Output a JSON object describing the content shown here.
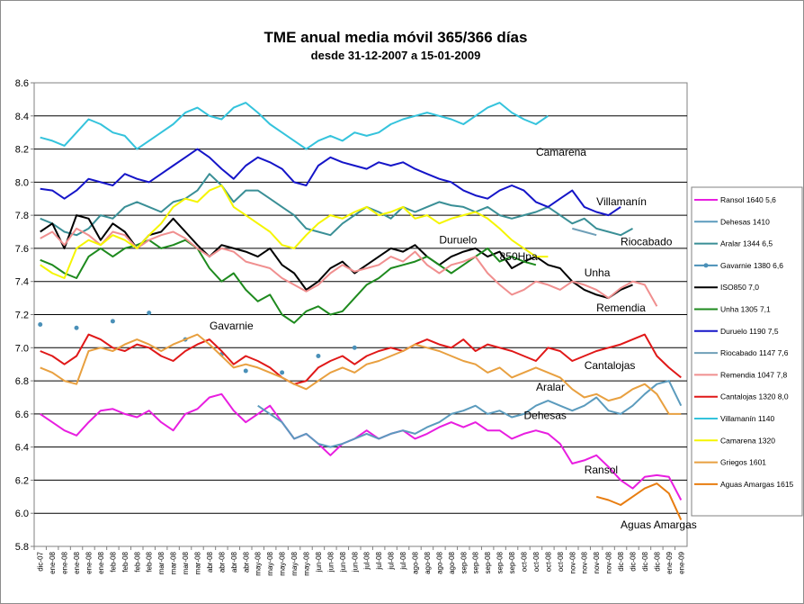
{
  "chart_data": {
    "type": "line",
    "title": "TME anual media móvil 365/366 días",
    "subtitle": "desde 31-12-2007 a 15-01-2009",
    "ylim": [
      5.8,
      8.6
    ],
    "yticks": [
      "8.6",
      "8.4",
      "8.2",
      "8.0",
      "7.8",
      "7.6",
      "7.4",
      "7.2",
      "7.0",
      "6.8",
      "6.6",
      "6.4",
      "6.2",
      "6.0",
      "5.8"
    ],
    "grid": "horizontal",
    "legend_position": "right",
    "x_tick_labels": [
      "dic-07",
      "ene-08",
      "ene-08",
      "ene-08",
      "ene-08",
      "ene-08",
      "feb-08",
      "feb-08",
      "feb-08",
      "feb-08",
      "mar-08",
      "mar-08",
      "mar-08",
      "mar-08",
      "abr-08",
      "abr-08",
      "abr-08",
      "abr-08",
      "may-08",
      "may-08",
      "may-08",
      "may-08",
      "may-08",
      "jun-08",
      "jun-08",
      "jun-08",
      "jun-08",
      "jul-08",
      "jul-08",
      "jul-08",
      "jul-08",
      "ago-08",
      "ago-08",
      "ago-08",
      "ago-08",
      "sep-08",
      "sep-08",
      "sep-08",
      "sep-08",
      "sep-08",
      "oct-08",
      "oct-08",
      "oct-08",
      "oct-08",
      "nov-08",
      "nov-08",
      "nov-08",
      "nov-08",
      "dic-08",
      "dic-08",
      "dic-08",
      "dic-08",
      "ene-09",
      "ene-09"
    ],
    "series": [
      {
        "name": "Ransol 1640 5,6",
        "color": "#e81ee0",
        "values": [
          6.6,
          6.55,
          6.5,
          6.47,
          6.55,
          6.62,
          6.63,
          6.6,
          6.58,
          6.62,
          6.55,
          6.5,
          6.6,
          6.63,
          6.7,
          6.72,
          6.62,
          6.55,
          6.6,
          6.65,
          6.55,
          6.45,
          6.48,
          6.42,
          6.35,
          6.42,
          6.45,
          6.5,
          6.45,
          6.48,
          6.5,
          6.45,
          6.48,
          6.52,
          6.55,
          6.52,
          6.55,
          6.5,
          6.5,
          6.45,
          6.48,
          6.5,
          6.48,
          6.42,
          6.3,
          6.32,
          6.35,
          6.28,
          6.2,
          6.15,
          6.22,
          6.23,
          6.22,
          6.08
        ]
      },
      {
        "name": "Dehesas 1410",
        "color": "#5b9bbd",
        "values": [
          null,
          null,
          null,
          null,
          null,
          null,
          null,
          null,
          null,
          null,
          null,
          null,
          null,
          null,
          null,
          null,
          null,
          null,
          6.65,
          6.6,
          6.55,
          6.45,
          6.48,
          6.42,
          6.4,
          6.42,
          6.45,
          6.48,
          6.45,
          6.48,
          6.5,
          6.48,
          6.52,
          6.55,
          6.6,
          6.62,
          6.65,
          6.6,
          6.62,
          6.58,
          6.6,
          6.65,
          6.68,
          6.65,
          6.62,
          6.65,
          6.7,
          6.62,
          6.6,
          6.65,
          6.72,
          6.78,
          6.8,
          6.65
        ]
      },
      {
        "name": "Aralar 1344 6,5",
        "color": "#3a8f96",
        "values": [
          7.78,
          7.75,
          7.7,
          7.68,
          7.72,
          7.8,
          7.78,
          7.85,
          7.88,
          7.85,
          7.82,
          7.88,
          7.9,
          7.95,
          8.05,
          7.98,
          7.88,
          7.95,
          7.95,
          7.9,
          7.85,
          7.8,
          7.72,
          7.7,
          7.68,
          7.75,
          7.8,
          7.85,
          7.82,
          7.78,
          7.85,
          7.82,
          7.85,
          7.88,
          7.86,
          7.85,
          7.82,
          7.85,
          7.8,
          7.78,
          7.8,
          7.82,
          7.85,
          7.8,
          7.75,
          7.78,
          7.72,
          7.7,
          7.68,
          7.72,
          null,
          null,
          null,
          null
        ]
      },
      {
        "name": "Gavarnie 1380 6,6",
        "color": "#4a90b8",
        "values": [
          7.14,
          null,
          null,
          7.12,
          null,
          null,
          7.16,
          null,
          null,
          7.21,
          null,
          null,
          7.05,
          null,
          null,
          6.96,
          null,
          6.86,
          null,
          null,
          6.85,
          null,
          null,
          6.95,
          null,
          null,
          7.0,
          null,
          null,
          null,
          null,
          null,
          null,
          null,
          null,
          null,
          null,
          null,
          null,
          null,
          null,
          null,
          null,
          null,
          null,
          null,
          null,
          null,
          null,
          null,
          null,
          null,
          null,
          null
        ]
      },
      {
        "name": "ISO850  7,0",
        "color": "#000000",
        "values": [
          7.7,
          7.75,
          7.6,
          7.8,
          7.78,
          7.65,
          7.75,
          7.7,
          7.6,
          7.68,
          7.7,
          7.78,
          7.7,
          7.62,
          7.55,
          7.62,
          7.6,
          7.58,
          7.55,
          7.6,
          7.5,
          7.45,
          7.35,
          7.4,
          7.48,
          7.52,
          7.45,
          7.5,
          7.55,
          7.6,
          7.58,
          7.62,
          7.55,
          7.5,
          7.55,
          7.58,
          7.6,
          7.55,
          7.58,
          7.48,
          7.52,
          7.55,
          7.5,
          7.48,
          7.4,
          7.35,
          7.32,
          7.3,
          7.35,
          7.38,
          null,
          null,
          null,
          null
        ]
      },
      {
        "name": "Unha 1305 7,1",
        "color": "#1e8a1e",
        "values": [
          7.53,
          7.5,
          7.45,
          7.42,
          7.55,
          7.6,
          7.55,
          7.6,
          7.62,
          7.65,
          7.6,
          7.62,
          7.65,
          7.6,
          7.48,
          7.4,
          7.45,
          7.35,
          7.28,
          7.32,
          7.2,
          7.15,
          7.22,
          7.25,
          7.2,
          7.22,
          7.3,
          7.38,
          7.42,
          7.48,
          7.5,
          7.52,
          7.55,
          7.5,
          7.45,
          7.5,
          7.55,
          7.6,
          7.52,
          7.55,
          7.52,
          7.5,
          null,
          null,
          null,
          null,
          null,
          null,
          null,
          null,
          null,
          null,
          null,
          null
        ]
      },
      {
        "name": "Duruelo 1190 7,5",
        "color": "#1515c8",
        "values": [
          7.96,
          7.95,
          7.9,
          7.95,
          8.02,
          8.0,
          7.98,
          8.05,
          8.02,
          8.0,
          8.05,
          8.1,
          8.15,
          8.2,
          8.15,
          8.08,
          8.02,
          8.1,
          8.15,
          8.12,
          8.08,
          8.0,
          7.98,
          8.1,
          8.15,
          8.12,
          8.1,
          8.08,
          8.12,
          8.1,
          8.12,
          8.08,
          8.05,
          8.02,
          8.0,
          7.95,
          7.92,
          7.9,
          7.95,
          7.98,
          7.95,
          7.88,
          7.85,
          7.9,
          7.95,
          7.85,
          7.82,
          7.8,
          7.85,
          null,
          null,
          null,
          null,
          null
        ]
      },
      {
        "name": "Riocabado 1147 7,6",
        "color": "#6f9fb8",
        "values": [
          null,
          null,
          null,
          null,
          null,
          null,
          null,
          null,
          null,
          null,
          null,
          null,
          null,
          null,
          null,
          null,
          null,
          null,
          null,
          null,
          null,
          null,
          null,
          null,
          null,
          null,
          null,
          null,
          null,
          null,
          null,
          null,
          null,
          null,
          null,
          null,
          null,
          null,
          null,
          null,
          null,
          null,
          null,
          null,
          7.72,
          7.7,
          7.68,
          null,
          null,
          null,
          null,
          null,
          null,
          null
        ]
      },
      {
        "name": "Remendia 1047 7,8",
        "color": "#f08f8f",
        "values": [
          7.66,
          7.7,
          7.62,
          7.72,
          7.68,
          7.62,
          7.7,
          7.68,
          7.6,
          7.65,
          7.68,
          7.7,
          7.66,
          7.6,
          7.55,
          7.6,
          7.58,
          7.52,
          7.5,
          7.48,
          7.42,
          7.38,
          7.34,
          7.38,
          7.45,
          7.5,
          7.46,
          7.48,
          7.5,
          7.55,
          7.52,
          7.58,
          7.5,
          7.45,
          7.5,
          7.52,
          7.55,
          7.45,
          7.38,
          7.32,
          7.35,
          7.4,
          7.38,
          7.35,
          7.4,
          7.38,
          7.35,
          7.3,
          7.36,
          7.4,
          7.38,
          7.25,
          null,
          null
        ]
      },
      {
        "name": "Cantalojas 1320 8,0",
        "color": "#e01818",
        "values": [
          6.98,
          6.95,
          6.9,
          6.95,
          7.08,
          7.05,
          7.0,
          6.98,
          7.02,
          7.0,
          6.95,
          6.92,
          6.98,
          7.02,
          7.05,
          6.98,
          6.9,
          6.95,
          6.92,
          6.88,
          6.82,
          6.78,
          6.8,
          6.88,
          6.92,
          6.95,
          6.9,
          6.95,
          6.98,
          7.0,
          6.98,
          7.02,
          7.05,
          7.02,
          7.0,
          7.05,
          6.98,
          7.02,
          7.0,
          6.98,
          6.95,
          6.92,
          7.0,
          6.98,
          6.92,
          6.95,
          6.98,
          7.0,
          7.02,
          7.05,
          7.08,
          6.95,
          6.88,
          6.82
        ]
      },
      {
        "name": "Villamanín 1140",
        "color": "#34c3dc",
        "values": [
          8.27,
          8.25,
          8.22,
          8.3,
          8.38,
          8.35,
          8.3,
          8.28,
          8.2,
          8.25,
          8.3,
          8.35,
          8.42,
          8.45,
          8.4,
          8.38,
          8.45,
          8.48,
          8.42,
          8.35,
          8.3,
          8.25,
          8.2,
          8.25,
          8.28,
          8.25,
          8.3,
          8.28,
          8.3,
          8.35,
          8.38,
          8.4,
          8.42,
          8.4,
          8.38,
          8.35,
          8.4,
          8.45,
          8.48,
          8.42,
          8.38,
          8.35,
          8.4,
          null,
          null,
          null,
          null,
          null,
          null,
          null,
          null,
          null,
          null,
          null
        ]
      },
      {
        "name": "Camarena 1320",
        "color": "#f5f500",
        "values": [
          7.5,
          7.45,
          7.42,
          7.6,
          7.65,
          7.62,
          7.68,
          7.65,
          7.6,
          7.68,
          7.75,
          7.85,
          7.9,
          7.88,
          7.95,
          7.98,
          7.85,
          7.8,
          7.75,
          7.7,
          7.62,
          7.6,
          7.68,
          7.75,
          7.8,
          7.78,
          7.82,
          7.85,
          7.8,
          7.82,
          7.85,
          7.78,
          7.8,
          7.75,
          7.78,
          7.8,
          7.82,
          7.78,
          7.72,
          7.65,
          7.6,
          7.55,
          7.55,
          null,
          null,
          null,
          null,
          null,
          null,
          null,
          null,
          null,
          null,
          null
        ]
      },
      {
        "name": "Griegos 1601",
        "color": "#e8a040",
        "values": [
          6.88,
          6.85,
          6.8,
          6.78,
          6.98,
          7.0,
          6.98,
          7.02,
          7.05,
          7.02,
          6.98,
          7.02,
          7.05,
          7.08,
          7.02,
          6.95,
          6.88,
          6.9,
          6.88,
          6.85,
          6.82,
          6.78,
          6.75,
          6.8,
          6.85,
          6.88,
          6.85,
          6.9,
          6.92,
          6.95,
          6.98,
          7.02,
          7.0,
          6.98,
          6.95,
          6.92,
          6.9,
          6.85,
          6.88,
          6.82,
          6.85,
          6.88,
          6.85,
          6.82,
          6.75,
          6.7,
          6.72,
          6.68,
          6.7,
          6.75,
          6.78,
          6.72,
          6.6,
          6.6
        ]
      },
      {
        "name": "Aguas Amargas 1615",
        "color": "#e87d10",
        "values": [
          null,
          null,
          null,
          null,
          null,
          null,
          null,
          null,
          null,
          null,
          null,
          null,
          null,
          null,
          null,
          null,
          null,
          null,
          null,
          null,
          null,
          null,
          null,
          null,
          null,
          null,
          null,
          null,
          null,
          null,
          null,
          null,
          null,
          null,
          null,
          null,
          null,
          null,
          null,
          null,
          null,
          null,
          null,
          null,
          null,
          null,
          6.1,
          6.08,
          6.05,
          6.1,
          6.15,
          6.18,
          6.12,
          5.96
        ]
      }
    ],
    "annotations": [
      {
        "text": "Camarena",
        "x_index": 41,
        "y": 8.16
      },
      {
        "text": "Villamanín",
        "x_index": 46,
        "y": 7.86
      },
      {
        "text": "Riocabado",
        "x_index": 48,
        "y": 7.62
      },
      {
        "text": "Duruelo",
        "x_index": 33,
        "y": 7.63
      },
      {
        "text": "850Hpa",
        "x_index": 38,
        "y": 7.53
      },
      {
        "text": "Unha",
        "x_index": 45,
        "y": 7.43
      },
      {
        "text": "Remendia",
        "x_index": 46,
        "y": 7.22
      },
      {
        "text": "Gavarnie",
        "x_index": 14,
        "y": 7.11
      },
      {
        "text": "Cantalojas",
        "x_index": 45,
        "y": 6.87
      },
      {
        "text": "Aralar",
        "x_index": 41,
        "y": 6.74
      },
      {
        "text": "Dehesas",
        "x_index": 40,
        "y": 6.57
      },
      {
        "text": "Ransol",
        "x_index": 45,
        "y": 6.24
      },
      {
        "text": "Aguas Amargas",
        "x_index": 48,
        "y": 5.91
      }
    ]
  }
}
